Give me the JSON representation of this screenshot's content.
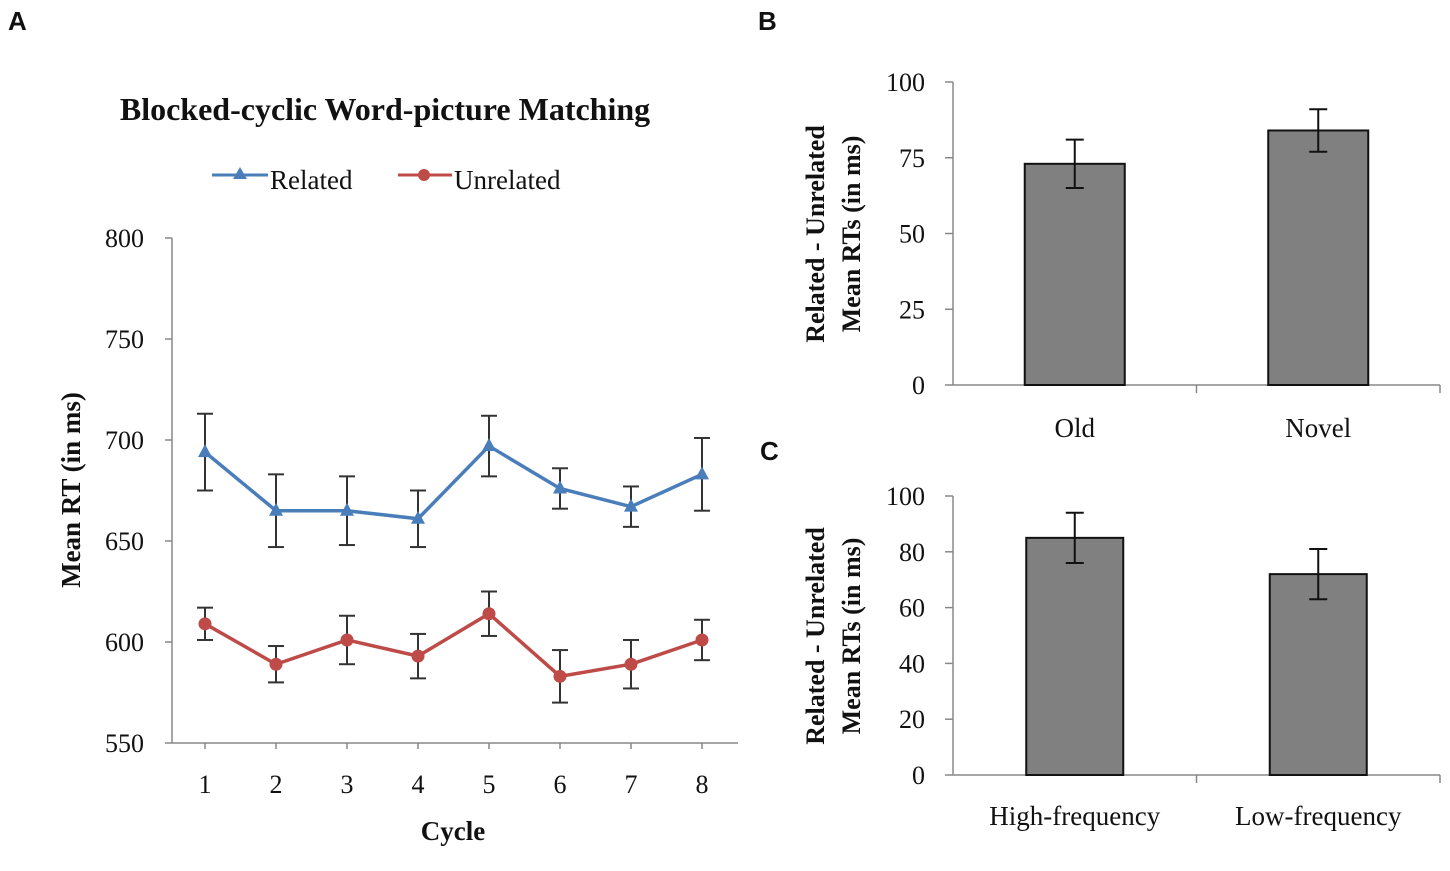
{
  "colors": {
    "related": "#4a7ebb",
    "unrelated": "#be4b48",
    "bar_fill": "#808080",
    "axis": "#888888",
    "text": "#111111"
  },
  "chart_data": [
    {
      "panel": "A",
      "type": "line",
      "title": "Blocked-cyclic Word-picture Matching",
      "xlabel": "Cycle",
      "ylabel": "Mean RT (in ms)",
      "ylim": [
        550,
        800
      ],
      "yticks": [
        550,
        600,
        650,
        700,
        750,
        800
      ],
      "x": [
        1,
        2,
        3,
        4,
        5,
        6,
        7,
        8
      ],
      "legend_position": "top",
      "series": [
        {
          "name": "Related",
          "marker": "triangle",
          "values": [
            694,
            665,
            665,
            661,
            697,
            676,
            667,
            683
          ],
          "errors": [
            19,
            18,
            17,
            14,
            15,
            10,
            10,
            18
          ]
        },
        {
          "name": "Unrelated",
          "marker": "circle",
          "values": [
            609,
            589,
            601,
            593,
            614,
            583,
            589,
            601
          ],
          "errors": [
            8,
            9,
            12,
            11,
            11,
            13,
            12,
            10
          ]
        }
      ]
    },
    {
      "panel": "B",
      "type": "bar",
      "ylabel_line1": "Related - Unrelated",
      "ylabel_line2": "Mean RTs (in ms)",
      "ylim": [
        0,
        100
      ],
      "yticks": [
        0,
        25,
        50,
        75,
        100
      ],
      "categories": [
        "Old",
        "Novel"
      ],
      "values": [
        73,
        84
      ],
      "errors": [
        8,
        7
      ]
    },
    {
      "panel": "C",
      "type": "bar",
      "ylabel_line1": "Related - Unrelated",
      "ylabel_line2": "Mean RTs (in ms)",
      "ylim": [
        0,
        100
      ],
      "yticks": [
        0,
        20,
        40,
        60,
        80,
        100
      ],
      "categories": [
        "High-frequency",
        "Low-frequency"
      ],
      "values": [
        85,
        72
      ],
      "errors": [
        9,
        9
      ]
    }
  ]
}
